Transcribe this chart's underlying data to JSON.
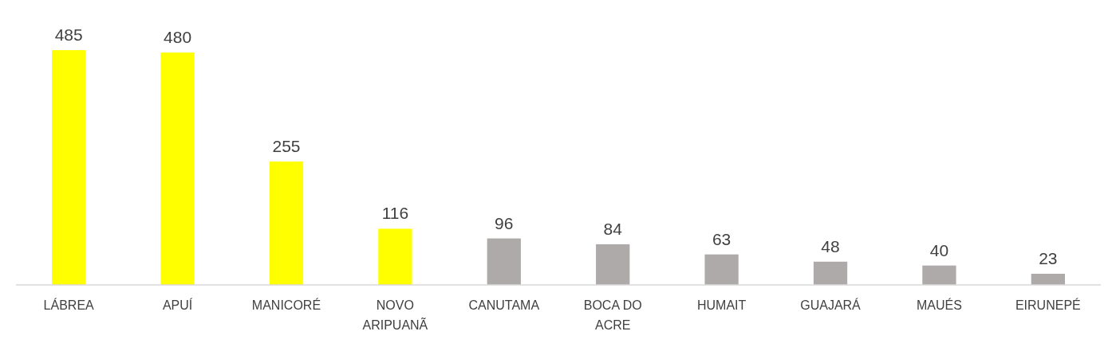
{
  "chart_data": {
    "type": "bar",
    "categories": [
      "LÁBREA",
      "APUÍ",
      "MANICORÉ",
      "NOVO ARIPUANÃ",
      "CANUTAMA",
      "BOCA DO ACRE",
      "HUMAIT",
      "GUAJARÁ",
      "MAUÉS",
      "EIRUNEPÉ"
    ],
    "values": [
      485,
      480,
      255,
      116,
      96,
      84,
      63,
      48,
      40,
      23
    ],
    "colors": [
      "#ffff00",
      "#ffff00",
      "#ffff00",
      "#ffff00",
      "#aeaaaa",
      "#aeaaaa",
      "#aeaaaa",
      "#aeaaaa",
      "#aeaaaa",
      "#aeaaaa"
    ],
    "data_labels": true
  }
}
